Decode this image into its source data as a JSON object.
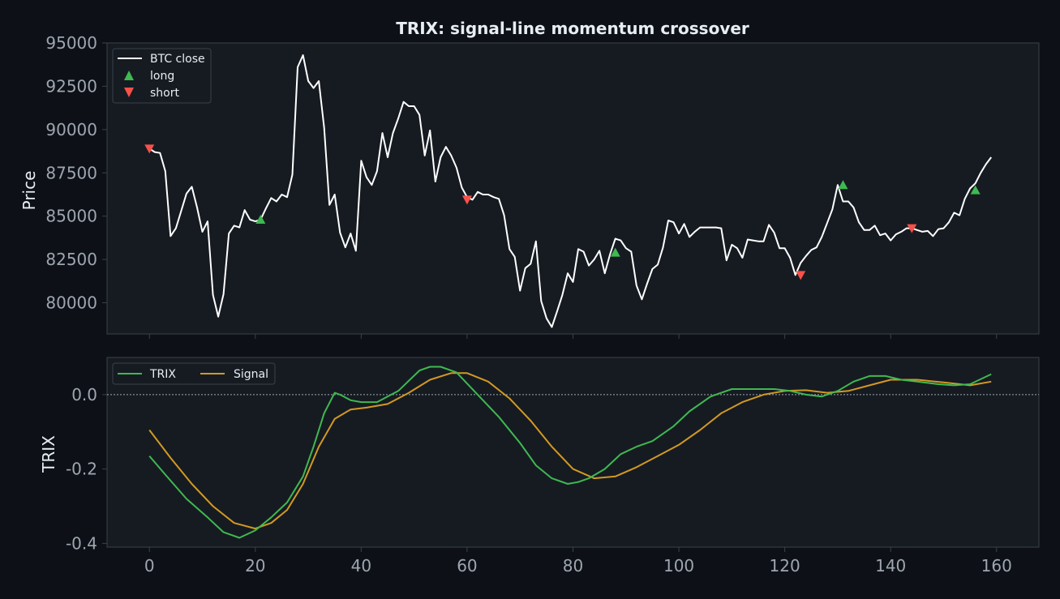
{
  "colors": {
    "background": "#0d1117",
    "panel": "#161b22",
    "frame": "#3a414a",
    "tick_text": "#9ea6b0",
    "label_text": "#e6edf3",
    "price_line": "#ffffff",
    "long": "#3fb950",
    "short": "#f85149",
    "trix": "#3fb950",
    "signal": "#d29922"
  },
  "chart_data": [
    {
      "type": "line",
      "title": "TRIX: signal-line momentum crossover",
      "xlabel": "",
      "ylabel": "Price",
      "xlim": [
        -8,
        168
      ],
      "ylim": [
        78200,
        95000
      ],
      "yticks": [
        80000,
        82500,
        85000,
        87500,
        90000,
        92500,
        95000
      ],
      "grid": false,
      "legend_placement": "top-left",
      "series": [
        {
          "name": "BTC close",
          "x": [
            0,
            1,
            2,
            3,
            4,
            5,
            6,
            7,
            8,
            9,
            10,
            11,
            12,
            13,
            14,
            15,
            16,
            17,
            18,
            19,
            20,
            21,
            22,
            23,
            24,
            25,
            26,
            27,
            28,
            29,
            30,
            31,
            32,
            33,
            34,
            35,
            36,
            37,
            38,
            39,
            40,
            41,
            42,
            43,
            44,
            45,
            46,
            47,
            48,
            49,
            50,
            51,
            52,
            53,
            54,
            55,
            56,
            57,
            58,
            59,
            60,
            61,
            62,
            63,
            64,
            65,
            66,
            67,
            68,
            69,
            70,
            71,
            72,
            73,
            74,
            75,
            76,
            77,
            78,
            79,
            80,
            81,
            82,
            83,
            84,
            85,
            86,
            87,
            88,
            89,
            90,
            91,
            92,
            93,
            94,
            95,
            96,
            97,
            98,
            99,
            100,
            101,
            102,
            103,
            104,
            105,
            106,
            107,
            108,
            109,
            110,
            111,
            112,
            113,
            114,
            115,
            116,
            117,
            118,
            119,
            120,
            121,
            122,
            123,
            124,
            125,
            126,
            127,
            128,
            129,
            130,
            131,
            132,
            133,
            134,
            135,
            136,
            137,
            138,
            139,
            140,
            141,
            142,
            143,
            144,
            145,
            146,
            147,
            148,
            149,
            150,
            151,
            152,
            153,
            154,
            155,
            156,
            157,
            158,
            159
          ],
          "y": [
            88900,
            88700,
            88650,
            87600,
            83850,
            84300,
            85300,
            86300,
            86700,
            85500,
            84100,
            84700,
            80450,
            79200,
            80500,
            84000,
            84450,
            84350,
            85350,
            84800,
            84700,
            84800,
            85450,
            86050,
            85850,
            86250,
            86100,
            87400,
            93600,
            94300,
            92800,
            92400,
            92800,
            90100,
            85650,
            86250,
            84050,
            83200,
            84000,
            83000,
            88200,
            87250,
            86800,
            87600,
            89800,
            88400,
            89800,
            90650,
            91600,
            91350,
            91350,
            90850,
            88500,
            89950,
            87000,
            88400,
            89000,
            88500,
            87800,
            86650,
            86100,
            85950,
            86400,
            86250,
            86250,
            86100,
            86000,
            85050,
            83100,
            82650,
            80700,
            82000,
            82250,
            83550,
            80100,
            79100,
            78600,
            79500,
            80450,
            81700,
            81200,
            83100,
            82950,
            82150,
            82500,
            83000,
            81700,
            82800,
            83700,
            83600,
            83150,
            82950,
            81000,
            80200,
            81100,
            81950,
            82200,
            83200,
            84750,
            84650,
            84000,
            84550,
            83800,
            84100,
            84350,
            84350,
            84350,
            84350,
            84300,
            82450,
            83350,
            83150,
            82600,
            83650,
            83600,
            83550,
            83550,
            84500,
            84050,
            83150,
            83150,
            82600,
            81600,
            82300,
            82700,
            83050,
            83200,
            83800,
            84600,
            85400,
            86800,
            85850,
            85850,
            85500,
            84650,
            84200,
            84200,
            84450,
            83900,
            84000,
            83600,
            83950,
            84100,
            84300,
            84300,
            84200,
            84100,
            84150,
            83850,
            84250,
            84300,
            84650,
            85200,
            85050,
            86000,
            86600,
            86900,
            87500,
            88000,
            88400
          ]
        }
      ],
      "markers": {
        "long": {
          "label": "long",
          "x": [
            21,
            88,
            131,
            156
          ],
          "y": [
            84800,
            82900,
            86800,
            86500
          ]
        },
        "short": {
          "label": "short",
          "x": [
            0,
            60,
            123,
            144
          ],
          "y": [
            88900,
            85950,
            81600,
            84300
          ]
        }
      }
    },
    {
      "type": "line",
      "xlabel": "",
      "ylabel": "TRIX",
      "xlim": [
        -8,
        168
      ],
      "ylim": [
        -0.41,
        0.1
      ],
      "yticks": [
        -0.4,
        -0.2,
        0.0
      ],
      "ytick_labels": [
        "-0.4",
        "-0.2",
        "0.0"
      ],
      "xticks": [
        0,
        20,
        40,
        60,
        80,
        100,
        120,
        140,
        160
      ],
      "grid": false,
      "zero_line": true,
      "legend_placement": "top-left",
      "series": [
        {
          "name": "TRIX",
          "x": [
            0,
            3,
            7,
            11,
            14,
            17,
            20,
            23,
            26,
            29,
            31,
            33,
            35,
            36,
            38,
            40,
            43,
            47,
            51,
            53,
            55,
            58,
            62,
            66,
            70,
            73,
            76,
            79,
            81,
            83,
            86,
            89,
            92,
            95,
            99,
            102,
            106,
            110,
            114,
            118,
            121,
            124,
            127,
            130,
            133,
            136,
            139,
            142,
            145,
            149,
            152,
            155,
            159
          ],
          "y": [
            -0.165,
            -0.215,
            -0.28,
            -0.33,
            -0.37,
            -0.385,
            -0.365,
            -0.33,
            -0.29,
            -0.22,
            -0.14,
            -0.05,
            0.005,
            0.0,
            -0.015,
            -0.02,
            -0.02,
            0.01,
            0.065,
            0.075,
            0.075,
            0.06,
            0.0,
            -0.06,
            -0.13,
            -0.19,
            -0.225,
            -0.24,
            -0.235,
            -0.225,
            -0.2,
            -0.16,
            -0.14,
            -0.125,
            -0.085,
            -0.045,
            -0.005,
            0.015,
            0.015,
            0.015,
            0.01,
            0.0,
            -0.005,
            0.01,
            0.035,
            0.05,
            0.05,
            0.04,
            0.035,
            0.028,
            0.025,
            0.028,
            0.055
          ]
        },
        {
          "name": "Signal",
          "x": [
            0,
            4,
            8,
            12,
            16,
            20,
            23,
            26,
            29,
            32,
            35,
            38,
            41,
            45,
            49,
            53,
            57,
            60,
            64,
            68,
            72,
            76,
            80,
            84,
            88,
            92,
            96,
            100,
            104,
            108,
            112,
            116,
            120,
            124,
            128,
            132,
            136,
            140,
            145,
            150,
            155,
            159
          ],
          "y": [
            -0.095,
            -0.17,
            -0.24,
            -0.3,
            -0.345,
            -0.36,
            -0.345,
            -0.31,
            -0.24,
            -0.14,
            -0.065,
            -0.04,
            -0.035,
            -0.025,
            0.005,
            0.04,
            0.058,
            0.058,
            0.035,
            -0.01,
            -0.07,
            -0.14,
            -0.2,
            -0.225,
            -0.22,
            -0.195,
            -0.165,
            -0.135,
            -0.095,
            -0.05,
            -0.02,
            0.0,
            0.01,
            0.012,
            0.005,
            0.01,
            0.025,
            0.04,
            0.04,
            0.033,
            0.025,
            0.035
          ]
        }
      ]
    }
  ]
}
